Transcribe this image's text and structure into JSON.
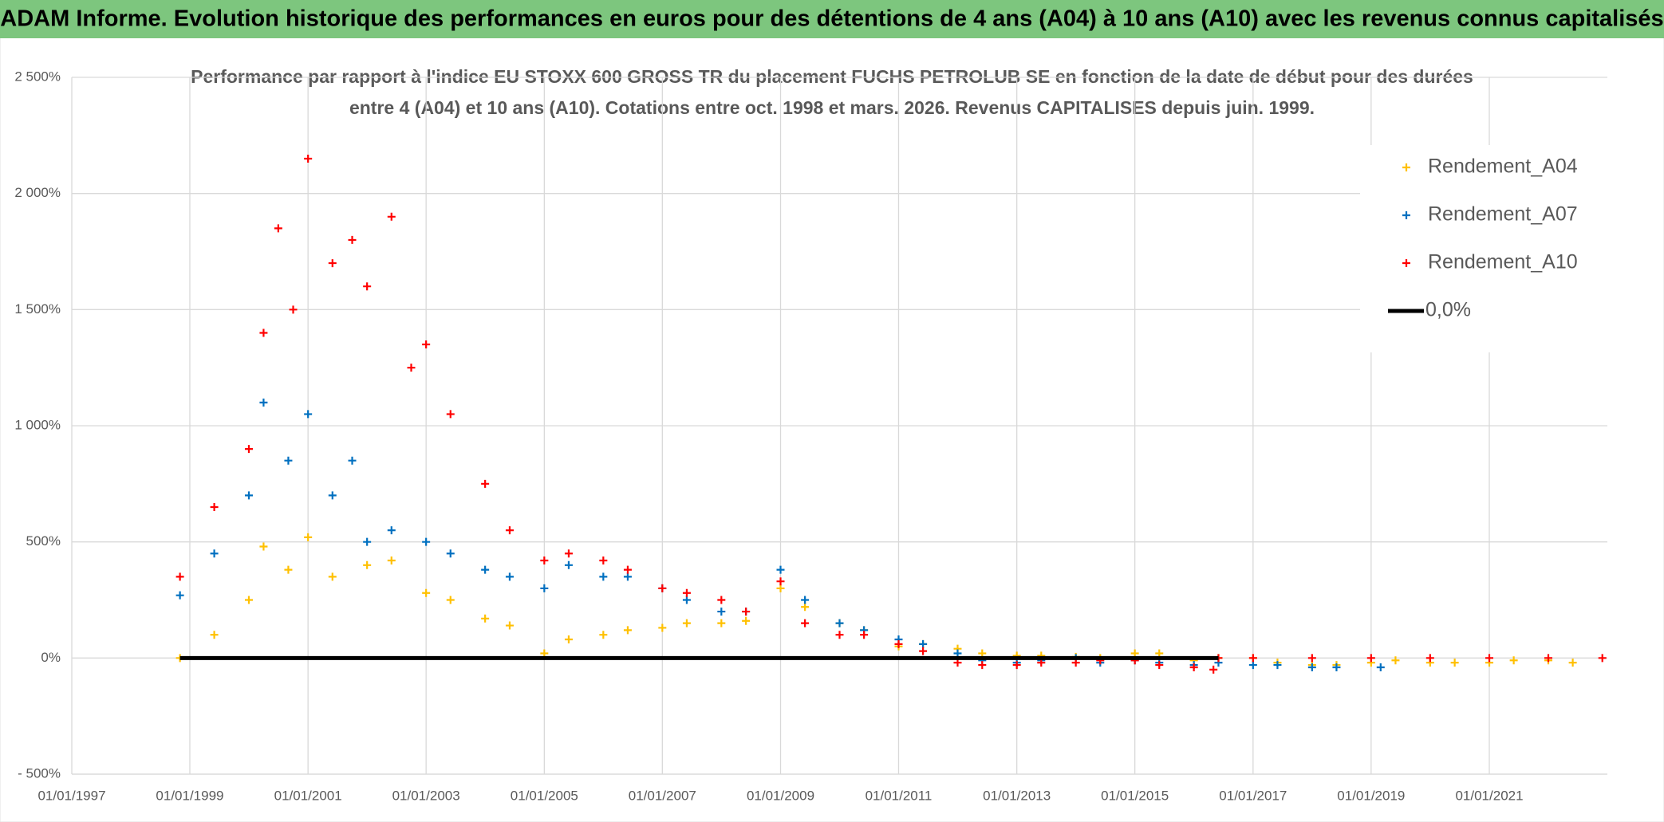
{
  "chart_data": {
    "type": "scatter",
    "header": "ADAM Informe. Evolution historique des performances en euros pour des détentions de 4 ans (A04) à 10 ans (A10) avec les revenus connus capitalisés",
    "title": [
      "Performance par rapport à l'indice EU STOXX 600 GROSS TR  du placement FUCHS PETROLUB SE en fonction de la date de début pour des durées",
      "entre 4 (A04) et 10 ans (A10). Cotations entre oct. 1998 et mars. 2026. Revenus CAPITALISES depuis juin. 1999."
    ],
    "xlim": [
      "1997-01-01",
      "2023-01-01"
    ],
    "xticks": [
      {
        "value": "1997-01-01",
        "label": "01/01/1997"
      },
      {
        "value": "1999-01-01",
        "label": "01/01/1999"
      },
      {
        "value": "2001-01-01",
        "label": "01/01/2001"
      },
      {
        "value": "2003-01-01",
        "label": "01/01/2003"
      },
      {
        "value": "2005-01-01",
        "label": "01/01/2005"
      },
      {
        "value": "2007-01-01",
        "label": "01/01/2007"
      },
      {
        "value": "2009-01-01",
        "label": "01/01/2009"
      },
      {
        "value": "2011-01-01",
        "label": "01/01/2011"
      },
      {
        "value": "2013-01-01",
        "label": "01/01/2013"
      },
      {
        "value": "2015-01-01",
        "label": "01/01/2015"
      },
      {
        "value": "2017-01-01",
        "label": "01/01/2017"
      },
      {
        "value": "2019-01-01",
        "label": "01/01/2019"
      },
      {
        "value": "2021-01-01",
        "label": "01/01/2021"
      }
    ],
    "ylim": [
      -500,
      2500
    ],
    "yticks": [
      {
        "value": 2500,
        "label": "2 500%"
      },
      {
        "value": 2000,
        "label": "2 000%"
      },
      {
        "value": 1500,
        "label": "1 500%"
      },
      {
        "value": 1000,
        "label": "1 000%"
      },
      {
        "value": 500,
        "label": "500%"
      },
      {
        "value": 0,
        "label": "0%"
      },
      {
        "value": -500,
        "label": "- 500%"
      }
    ],
    "grid": true,
    "legend": "upper right",
    "series": [
      {
        "name": "Rendement_A04",
        "color": "#ffc000",
        "marker": "plus",
        "x": [
          "1998-11-01",
          "1999-06-01",
          "2000-01-01",
          "2000-04-01",
          "2000-09-01",
          "2001-01-01",
          "2001-06-01",
          "2002-01-01",
          "2002-06-01",
          "2003-01-01",
          "2003-06-01",
          "2004-01-01",
          "2004-06-01",
          "2005-01-01",
          "2005-06-01",
          "2006-01-01",
          "2006-06-01",
          "2007-01-01",
          "2007-06-01",
          "2008-01-01",
          "2008-06-01",
          "2009-01-01",
          "2009-06-01",
          "2010-01-01",
          "2010-06-01",
          "2011-01-01",
          "2011-06-01",
          "2012-01-01",
          "2012-06-01",
          "2013-01-01",
          "2013-06-01",
          "2014-01-01",
          "2014-06-01",
          "2015-01-01",
          "2015-06-01",
          "2016-01-01",
          "2016-06-01",
          "2017-01-01",
          "2017-06-01",
          "2018-01-01",
          "2018-06-01",
          "2019-01-01",
          "2019-06-01",
          "2020-01-01",
          "2020-06-01",
          "2021-01-01",
          "2021-06-01",
          "2022-01-01",
          "2022-06-01"
        ],
        "values": [
          0,
          100,
          250,
          480,
          380,
          520,
          350,
          400,
          420,
          280,
          250,
          170,
          140,
          20,
          80,
          100,
          120,
          130,
          150,
          150,
          160,
          300,
          220,
          150,
          120,
          50,
          60,
          40,
          20,
          10,
          10,
          5,
          0,
          20,
          20,
          -10,
          0,
          0,
          -20,
          -30,
          -30,
          -20,
          -10,
          -20,
          -20,
          -20,
          -10,
          -10,
          -20
        ]
      },
      {
        "name": "Rendement_A07",
        "color": "#0070c0",
        "marker": "plus",
        "x": [
          "1998-11-01",
          "1999-06-01",
          "2000-01-01",
          "2000-04-01",
          "2000-09-01",
          "2001-01-01",
          "2001-06-01",
          "2001-10-01",
          "2002-01-01",
          "2002-06-01",
          "2003-01-01",
          "2003-06-01",
          "2004-01-01",
          "2004-06-01",
          "2005-01-01",
          "2005-06-01",
          "2006-01-01",
          "2006-06-01",
          "2007-01-01",
          "2007-06-01",
          "2008-01-01",
          "2008-06-01",
          "2009-01-01",
          "2009-06-01",
          "2010-01-01",
          "2010-06-01",
          "2011-01-01",
          "2011-06-01",
          "2012-01-01",
          "2012-06-01",
          "2013-01-01",
          "2013-06-01",
          "2014-01-01",
          "2014-06-01",
          "2015-01-01",
          "2015-06-01",
          "2016-01-01",
          "2016-06-01",
          "2017-01-01",
          "2017-06-01",
          "2018-01-01",
          "2018-06-01",
          "2019-03-01"
        ],
        "values": [
          270,
          450,
          700,
          1100,
          850,
          1050,
          700,
          850,
          500,
          550,
          500,
          450,
          380,
          350,
          300,
          400,
          350,
          350,
          300,
          250,
          200,
          200,
          380,
          250,
          150,
          120,
          80,
          60,
          20,
          -10,
          -20,
          -10,
          0,
          -20,
          -10,
          -20,
          -30,
          -20,
          -30,
          -30,
          -40,
          -40,
          -40
        ]
      },
      {
        "name": "Rendement_A10",
        "color": "#ff0000",
        "marker": "plus",
        "x": [
          "1998-11-01",
          "1999-06-01",
          "2000-01-01",
          "2000-04-01",
          "2000-07-01",
          "2000-10-01",
          "2001-01-01",
          "2001-06-01",
          "2001-10-01",
          "2002-01-01",
          "2002-06-01",
          "2002-10-01",
          "2003-01-01",
          "2003-06-01",
          "2004-01-01",
          "2004-06-01",
          "2005-01-01",
          "2005-06-01",
          "2006-01-01",
          "2006-06-01",
          "2007-01-01",
          "2007-06-01",
          "2008-01-01",
          "2008-06-01",
          "2009-01-01",
          "2009-06-01",
          "2010-01-01",
          "2010-06-01",
          "2011-01-01",
          "2011-06-01",
          "2012-01-01",
          "2012-06-01",
          "2013-01-01",
          "2013-06-01",
          "2014-01-01",
          "2014-06-01",
          "2015-01-01",
          "2015-06-01",
          "2016-01-01",
          "2016-05-01",
          "2016-06-01",
          "2017-01-01",
          "2018-01-01",
          "2019-01-01",
          "2020-01-01",
          "2021-01-01",
          "2022-01-01",
          "2022-12-01"
        ],
        "values": [
          350,
          650,
          900,
          1400,
          1850,
          1500,
          2150,
          1700,
          1800,
          1600,
          1900,
          1250,
          1350,
          1050,
          750,
          550,
          420,
          450,
          420,
          380,
          300,
          280,
          250,
          200,
          330,
          150,
          100,
          100,
          60,
          30,
          -20,
          -30,
          -30,
          -20,
          -20,
          -10,
          -10,
          -30,
          -40,
          -50,
          0,
          0,
          0,
          0,
          0,
          0,
          0,
          0
        ]
      },
      {
        "name": "0,0%",
        "color": "#000000",
        "marker": "line",
        "x": [
          "1998-11-01",
          "2016-06-01"
        ],
        "values": [
          0,
          0
        ]
      }
    ]
  }
}
